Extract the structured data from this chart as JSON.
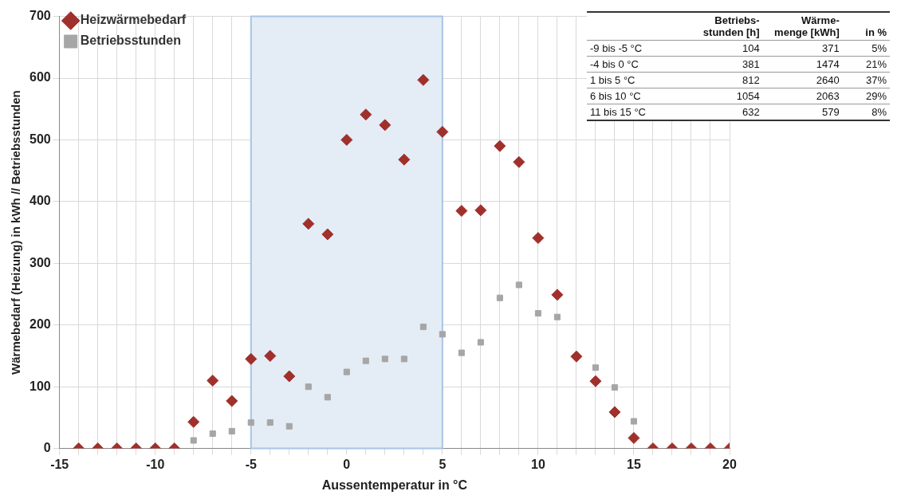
{
  "chart_data": {
    "type": "scatter",
    "xlabel": "Aussentemperatur in °C",
    "ylabel": "Wärmebedarf (Heizung) in kWh // Betriebsstunden",
    "xlim": [
      -15,
      20
    ],
    "xticks": [
      -15,
      {
        "value": -14,
        "label": null
      },
      {
        "value": -13,
        "label": null
      },
      {
        "value": -12,
        "label": null
      },
      {
        "value": -11,
        "label": null
      },
      -10,
      {
        "value": -9,
        "label": null
      },
      {
        "value": -8,
        "label": null
      },
      {
        "value": -7,
        "label": null
      },
      {
        "value": -6,
        "label": null
      },
      -5,
      {
        "value": -4,
        "label": null
      },
      {
        "value": -3,
        "label": null
      },
      {
        "value": -2,
        "label": null
      },
      {
        "value": -1,
        "label": null
      },
      0,
      {
        "value": 1,
        "label": null
      },
      {
        "value": 2,
        "label": null
      },
      {
        "value": 3,
        "label": null
      },
      {
        "value": 4,
        "label": null
      },
      5,
      {
        "value": 6,
        "label": null
      },
      {
        "value": 7,
        "label": null
      },
      {
        "value": 8,
        "label": null
      },
      {
        "value": 9,
        "label": null
      },
      10,
      {
        "value": 11,
        "label": null
      },
      {
        "value": 12,
        "label": null
      },
      {
        "value": 13,
        "label": null
      },
      {
        "value": 14,
        "label": null
      },
      15,
      {
        "value": 16,
        "label": null
      },
      {
        "value": 17,
        "label": null
      },
      {
        "value": 18,
        "label": null
      },
      {
        "value": 19,
        "label": null
      },
      20
    ],
    "ylim": [
      0,
      700
    ],
    "yticks": [
      0,
      100,
      200,
      300,
      400,
      500,
      600,
      700
    ],
    "grid": true,
    "legend": "top left",
    "x": [
      -14,
      -13,
      -12,
      -11,
      -10,
      -9,
      -8,
      -7,
      -6,
      -5,
      -4,
      -3,
      -2,
      -1,
      0,
      1,
      2,
      3,
      4,
      5,
      6,
      7,
      8,
      9,
      10,
      11,
      12,
      13,
      14,
      15,
      16,
      17,
      18,
      19,
      20
    ],
    "series": [
      {
        "name": "Heizwärmebedarf",
        "color": "#a0302c",
        "marker": "diamond",
        "values": [
          0,
          0,
          0,
          0,
          0,
          0,
          43,
          110,
          77,
          145,
          150,
          117,
          364,
          347,
          500,
          541,
          524,
          468,
          597,
          513,
          385,
          386,
          490,
          464,
          341,
          249,
          149,
          109,
          59,
          17,
          0,
          0,
          0,
          0,
          0
        ]
      },
      {
        "name": "Betriebsstunden",
        "color": "#a6a6a6",
        "marker": "square",
        "values": [
          0,
          0,
          0,
          0,
          0,
          0,
          13,
          24,
          28,
          42,
          42,
          36,
          100,
          83,
          124,
          142,
          145,
          145,
          197,
          185,
          155,
          172,
          244,
          265,
          219,
          213,
          null,
          131,
          99,
          44,
          0,
          0,
          0,
          0,
          0
        ]
      }
    ],
    "bands": [
      {
        "axis": "x",
        "from": -5,
        "to": 5,
        "color": "#e4ecf6"
      }
    ],
    "annotations": [
      "Betriebs- stunden [h]",
      "Wärme- menge [kWh]",
      "in %",
      "-9 bis -5 °C",
      "104",
      "371",
      "5%",
      "-4 bis 0 °C",
      "381",
      "1474",
      "21%",
      "1 bis 5 °C",
      "812",
      "2640",
      "37%",
      "6 bis 10 °C",
      "1054",
      "2063",
      "29%",
      "11 bis 15 °C",
      "632",
      "579",
      "8%"
    ]
  }
}
